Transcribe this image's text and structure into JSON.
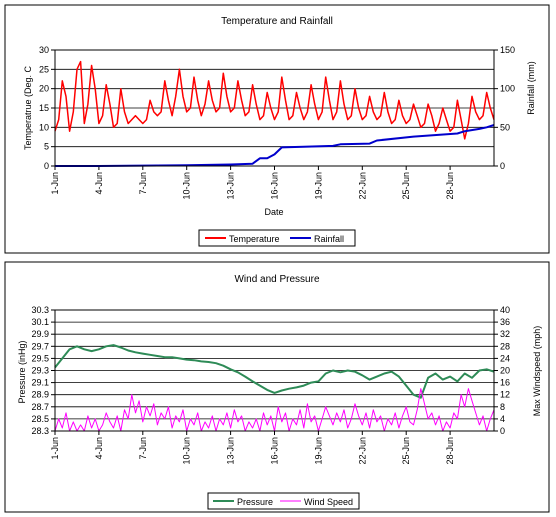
{
  "chart_data": [
    {
      "type": "line",
      "title": "Temperature and Rainfall",
      "xlabel": "Date",
      "ylabel": "Temperatrue (Deg. C",
      "y2label": "Rainfall (mm)",
      "ylim": [
        0,
        30
      ],
      "y2lim": [
        0,
        150
      ],
      "yticks": [
        "0",
        "5",
        "10",
        "15",
        "20",
        "25",
        "30"
      ],
      "y2ticks": [
        "0",
        "50",
        "100",
        "150"
      ],
      "xlim": [
        1,
        31
      ],
      "xticks": [
        {
          "day": 1,
          "label": "1-Jun"
        },
        {
          "day": 4,
          "label": "4-Jun"
        },
        {
          "day": 7,
          "label": "7-Jun"
        },
        {
          "day": 10,
          "label": "10-Jun"
        },
        {
          "day": 13,
          "label": "13-Jun"
        },
        {
          "day": 16,
          "label": "16-Jun"
        },
        {
          "day": 19,
          "label": "19-Jun"
        },
        {
          "day": 22,
          "label": "22-Jun"
        },
        {
          "day": 25,
          "label": "25-Jun"
        },
        {
          "day": 28,
          "label": "28-Jun"
        }
      ],
      "grid": "horizontal",
      "legend": "bottom",
      "series": [
        {
          "name": "Temperature",
          "axis": "left",
          "color": "#ff0000",
          "x": [
            1,
            1.25,
            1.5,
            1.75,
            2,
            2.25,
            2.5,
            2.75,
            3,
            3.25,
            3.5,
            3.75,
            4,
            4.25,
            4.5,
            4.75,
            5,
            5.25,
            5.5,
            5.75,
            6,
            6.25,
            6.5,
            6.75,
            7,
            7.25,
            7.5,
            7.75,
            8,
            8.25,
            8.5,
            8.75,
            9,
            9.25,
            9.5,
            9.75,
            10,
            10.25,
            10.5,
            10.75,
            11,
            11.25,
            11.5,
            11.75,
            12,
            12.25,
            12.5,
            12.75,
            13,
            13.25,
            13.5,
            13.75,
            14,
            14.25,
            14.5,
            14.75,
            15,
            15.25,
            15.5,
            15.75,
            16,
            16.25,
            16.5,
            16.75,
            17,
            17.25,
            17.5,
            17.75,
            18,
            18.25,
            18.5,
            18.75,
            19,
            19.25,
            19.5,
            19.75,
            20,
            20.25,
            20.5,
            20.75,
            21,
            21.25,
            21.5,
            21.75,
            22,
            22.25,
            22.5,
            22.75,
            23,
            23.25,
            23.5,
            23.75,
            24,
            24.25,
            24.5,
            24.75,
            25,
            25.25,
            25.5,
            25.75,
            26,
            26.25,
            26.5,
            26.75,
            27,
            27.25,
            27.5,
            27.75,
            28,
            28.25,
            28.5,
            28.75,
            29,
            29.25,
            29.5,
            29.75,
            30,
            30.25,
            30.5,
            30.75,
            31
          ],
          "values": [
            9,
            12,
            22,
            18,
            9,
            14,
            25,
            27,
            11,
            16,
            26,
            20,
            11,
            13,
            21,
            16,
            10,
            11,
            20,
            14,
            11,
            12,
            13,
            12,
            11,
            12,
            17,
            14,
            13,
            14,
            22,
            17,
            13,
            18,
            25,
            18,
            14,
            15,
            23,
            17,
            13,
            16,
            22,
            17,
            14,
            15,
            24,
            18,
            14,
            15,
            22,
            17,
            13,
            14,
            21,
            16,
            12,
            13,
            19,
            15,
            12,
            14,
            23,
            17,
            12,
            13,
            19,
            15,
            12,
            14,
            21,
            16,
            12,
            14,
            23,
            17,
            12,
            14,
            22,
            16,
            12,
            13,
            20,
            15,
            12,
            13,
            18,
            14,
            12,
            13,
            19,
            14,
            11,
            12,
            17,
            13,
            11,
            12,
            16,
            13,
            10,
            11,
            16,
            13,
            9,
            11,
            15,
            12,
            9,
            10,
            17,
            12,
            7,
            11,
            18,
            14,
            12,
            13,
            19,
            15,
            12
          ]
        },
        {
          "name": "Rainfall",
          "axis": "right",
          "color": "#0000cc",
          "x": [
            1,
            4,
            7,
            10,
            13,
            14.5,
            15,
            15.5,
            16,
            16.5,
            18,
            20,
            20.5,
            22.5,
            23,
            25.5,
            28.5,
            29,
            30,
            30.5,
            31
          ],
          "values": [
            0,
            0,
            0.5,
            1,
            2,
            3,
            10,
            10,
            15,
            24,
            25,
            26,
            28,
            29,
            33,
            38,
            42,
            45,
            48,
            50,
            53
          ]
        }
      ]
    },
    {
      "type": "line",
      "title": "Wind and Pressure",
      "xlabel": "",
      "ylabel": "Pressure (inHg)",
      "y2label": "Max Windspeed (mph)",
      "ylim": [
        28.3,
        30.3
      ],
      "y2lim": [
        0,
        40
      ],
      "yticks": [
        "28.3",
        "28.5",
        "28.7",
        "28.9",
        "29.1",
        "29.3",
        "29.5",
        "29.7",
        "29.9",
        "30.1",
        "30.3"
      ],
      "y2ticks": [
        "0",
        "4",
        "8",
        "12",
        "16",
        "20",
        "24",
        "28",
        "32",
        "36",
        "40"
      ],
      "xlim": [
        1,
        31
      ],
      "xticks": [
        {
          "day": 1,
          "label": "1-Jun"
        },
        {
          "day": 4,
          "label": "4-Jun"
        },
        {
          "day": 7,
          "label": "7-Jun"
        },
        {
          "day": 10,
          "label": "10-Jun"
        },
        {
          "day": 13,
          "label": "13-Jun"
        },
        {
          "day": 16,
          "label": "16-Jun"
        },
        {
          "day": 19,
          "label": "19-Jun"
        },
        {
          "day": 22,
          "label": "22-Jun"
        },
        {
          "day": 25,
          "label": "25-Jun"
        },
        {
          "day": 28,
          "label": "28-Jun"
        }
      ],
      "grid": "horizontal",
      "legend": "bottom",
      "series": [
        {
          "name": "Pressure",
          "axis": "left",
          "color": "#2e8b57",
          "x": [
            1,
            1.5,
            2,
            2.5,
            3,
            3.5,
            4,
            4.5,
            5,
            5.5,
            6,
            6.5,
            7,
            7.5,
            8,
            8.5,
            9,
            9.5,
            10,
            10.5,
            11,
            11.5,
            12,
            12.5,
            13,
            13.5,
            14,
            14.5,
            15,
            15.5,
            16,
            16.5,
            17,
            17.5,
            18,
            18.5,
            19,
            19.5,
            20,
            20.5,
            21,
            21.5,
            22,
            22.5,
            23,
            23.5,
            24,
            24.5,
            25,
            25.5,
            26,
            26.5,
            27,
            27.5,
            28,
            28.5,
            29,
            29.5,
            30,
            30.5,
            31
          ],
          "values": [
            29.35,
            29.5,
            29.65,
            29.7,
            29.65,
            29.62,
            29.65,
            29.7,
            29.72,
            29.68,
            29.63,
            29.6,
            29.58,
            29.56,
            29.54,
            29.52,
            29.52,
            29.5,
            29.48,
            29.47,
            29.45,
            29.44,
            29.42,
            29.38,
            29.32,
            29.27,
            29.2,
            29.12,
            29.05,
            28.98,
            28.93,
            28.97,
            29.0,
            29.02,
            29.05,
            29.1,
            29.12,
            29.25,
            29.3,
            29.27,
            29.3,
            29.28,
            29.22,
            29.15,
            29.2,
            29.25,
            29.28,
            29.2,
            29.05,
            28.9,
            28.85,
            29.18,
            29.25,
            29.15,
            29.2,
            29.12,
            29.25,
            29.18,
            29.3,
            29.32,
            29.28
          ]
        },
        {
          "name": "Wind Speed",
          "axis": "right",
          "color": "#ff00ff",
          "x": [
            1,
            1.25,
            1.5,
            1.75,
            2,
            2.25,
            2.5,
            2.75,
            3,
            3.25,
            3.5,
            3.75,
            4,
            4.25,
            4.5,
            4.75,
            5,
            5.25,
            5.5,
            5.75,
            6,
            6.25,
            6.5,
            6.75,
            7,
            7.25,
            7.5,
            7.75,
            8,
            8.25,
            8.5,
            8.75,
            9,
            9.25,
            9.5,
            9.75,
            10,
            10.25,
            10.5,
            10.75,
            11,
            11.25,
            11.5,
            11.75,
            12,
            12.25,
            12.5,
            12.75,
            13,
            13.25,
            13.5,
            13.75,
            14,
            14.25,
            14.5,
            14.75,
            15,
            15.25,
            15.5,
            15.75,
            16,
            16.25,
            16.5,
            16.75,
            17,
            17.25,
            17.5,
            17.75,
            18,
            18.25,
            18.5,
            18.75,
            19,
            19.25,
            19.5,
            19.75,
            20,
            20.25,
            20.5,
            20.75,
            21,
            21.25,
            21.5,
            21.75,
            22,
            22.25,
            22.5,
            22.75,
            23,
            23.25,
            23.5,
            23.75,
            24,
            24.25,
            24.5,
            24.75,
            25,
            25.25,
            25.5,
            25.75,
            26,
            26.25,
            26.5,
            26.75,
            27,
            27.25,
            27.5,
            27.75,
            28,
            28.25,
            28.5,
            28.75,
            29,
            29.25,
            29.5,
            29.75,
            30,
            30.25,
            30.5,
            30.75,
            31
          ],
          "values": [
            0,
            4,
            1,
            6,
            0,
            3,
            0,
            2,
            0,
            5,
            1,
            4,
            0,
            2,
            6,
            3,
            1,
            5,
            0,
            7,
            4,
            12,
            6,
            10,
            3,
            8,
            5,
            9,
            2,
            6,
            4,
            8,
            1,
            5,
            3,
            7,
            0,
            4,
            2,
            6,
            0,
            3,
            1,
            5,
            0,
            4,
            2,
            6,
            1,
            7,
            3,
            5,
            0,
            3,
            1,
            4,
            0,
            6,
            2,
            5,
            0,
            8,
            3,
            6,
            0,
            4,
            2,
            7,
            1,
            9,
            3,
            5,
            0,
            4,
            8,
            5,
            2,
            6,
            3,
            7,
            1,
            4,
            9,
            5,
            2,
            6,
            1,
            7,
            3,
            5,
            0,
            4,
            2,
            6,
            1,
            5,
            8,
            3,
            2,
            7,
            14,
            9,
            4,
            6,
            2,
            5,
            0,
            3,
            1,
            6,
            4,
            12,
            8,
            14,
            10,
            6,
            2,
            5,
            0,
            4,
            7
          ]
        }
      ]
    }
  ]
}
